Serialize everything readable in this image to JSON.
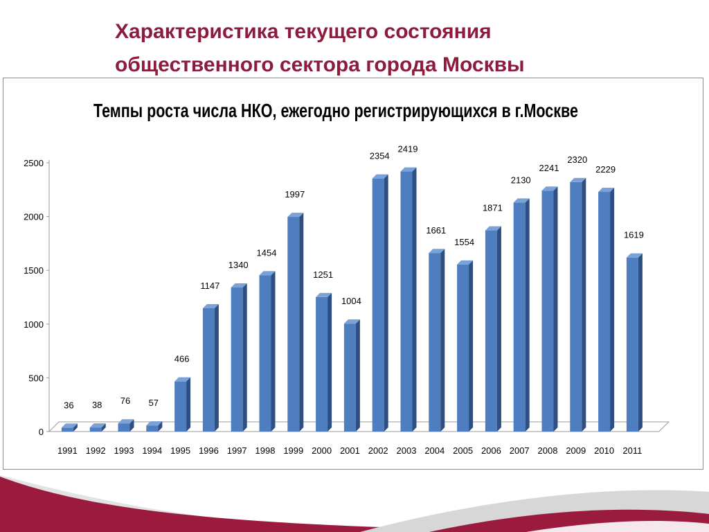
{
  "slide": {
    "title_line1": "Характеристика текущего состояния",
    "title_line2": "общественного сектора города Москвы",
    "colors": {
      "title": "#8c1b3c",
      "bar_front": "#4f7ec0",
      "bar_side": "#2d4f82",
      "bar_top": "#7aa1d8",
      "deco": "#9b1b3f"
    }
  },
  "chart_data": {
    "type": "bar",
    "title": "Темпы роста числа НКО, ежегодно регистрирующихся в г.Москве",
    "xlabel": "",
    "ylabel": "",
    "ylim": [
      0,
      2500
    ],
    "yticks": [
      0,
      500,
      1000,
      1500,
      2000,
      2500
    ],
    "grid": false,
    "legend": "none",
    "categories": [
      "1991",
      "1992",
      "1993",
      "1994",
      "1995",
      "1996",
      "1997",
      "1998",
      "1999",
      "2000",
      "2001",
      "2002",
      "2003",
      "2004",
      "2005",
      "2006",
      "2007",
      "2008",
      "2009",
      "2010",
      "2011"
    ],
    "values": [
      36,
      38,
      76,
      57,
      466,
      1147,
      1340,
      1454,
      1997,
      1251,
      1004,
      2354,
      2419,
      1661,
      1554,
      1871,
      2130,
      2241,
      2320,
      2229,
      1619
    ],
    "data_labels": [
      "36",
      "38",
      "76",
      "57",
      "466",
      "1147",
      "1340",
      "1454",
      "1997",
      "1251",
      "1004",
      "2354",
      "2419",
      "1661",
      "1554",
      "1871",
      "2130",
      "2241",
      "2320",
      "2229",
      "1619"
    ]
  }
}
